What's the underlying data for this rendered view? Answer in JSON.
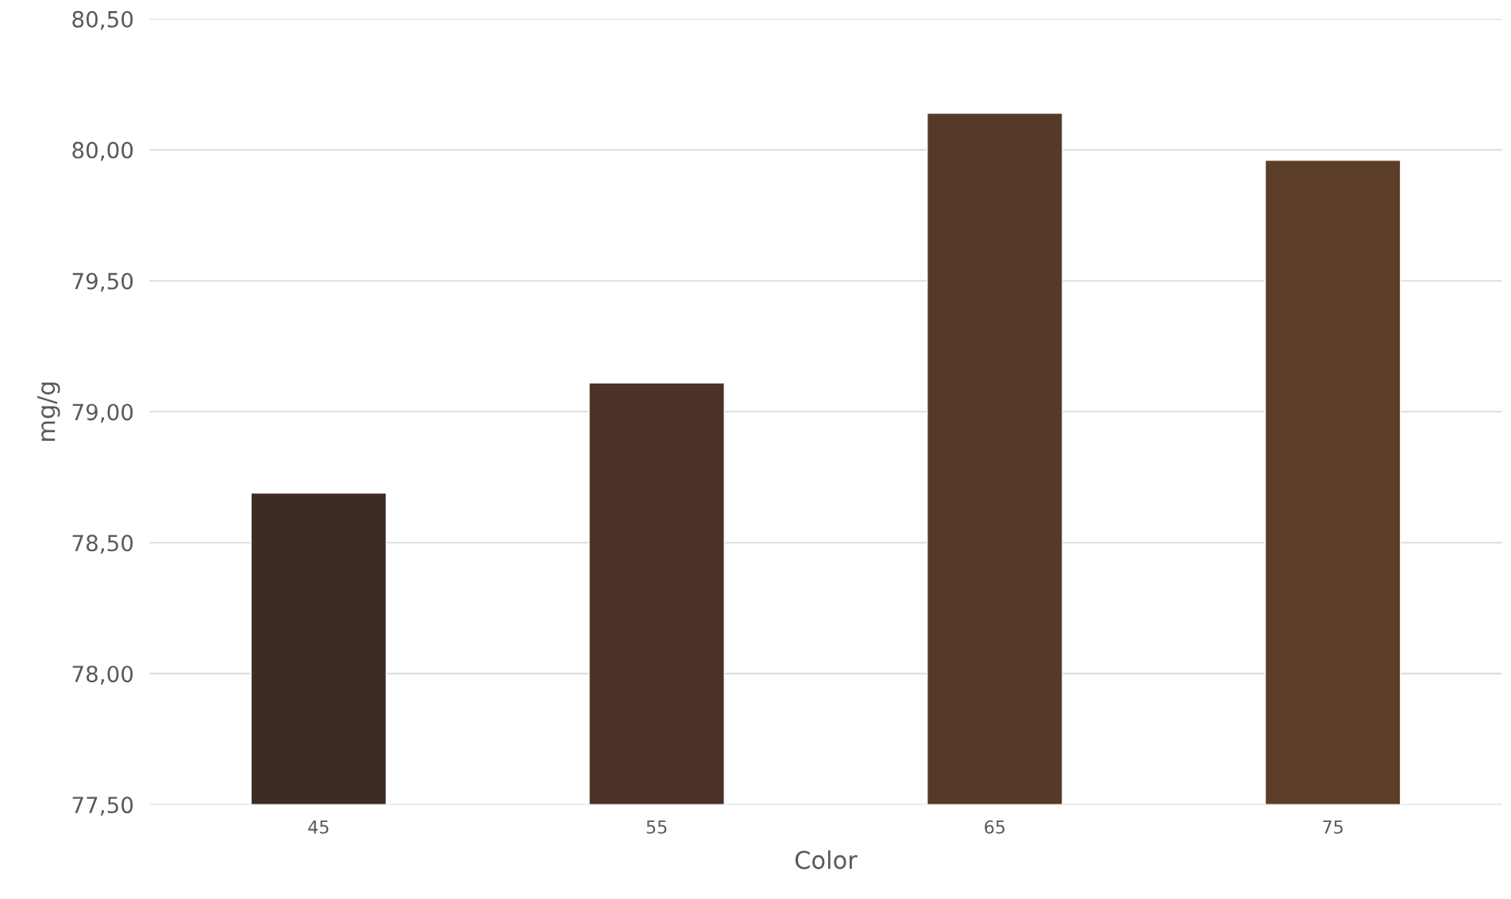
{
  "chart_data": {
    "type": "bar",
    "xlabel": "Color",
    "ylabel": "mg/g",
    "categories": [
      "45",
      "55",
      "65",
      "75"
    ],
    "values": [
      78.69,
      79.11,
      80.14,
      79.96
    ],
    "colors": [
      "#3e2b24",
      "#4b3128",
      "#553a29",
      "#5c3d27"
    ],
    "ylim": [
      77.5,
      80.5
    ],
    "yticks": [
      {
        "value": 77.5,
        "label": "77,50"
      },
      {
        "value": 78.0,
        "label": "78,00"
      },
      {
        "value": 78.5,
        "label": "78,50"
      },
      {
        "value": 79.0,
        "label": "79,00"
      },
      {
        "value": 79.5,
        "label": "79,50"
      },
      {
        "value": 80.0,
        "label": "80,00"
      },
      {
        "value": 80.5,
        "label": "80,50"
      }
    ],
    "grid": "y"
  }
}
